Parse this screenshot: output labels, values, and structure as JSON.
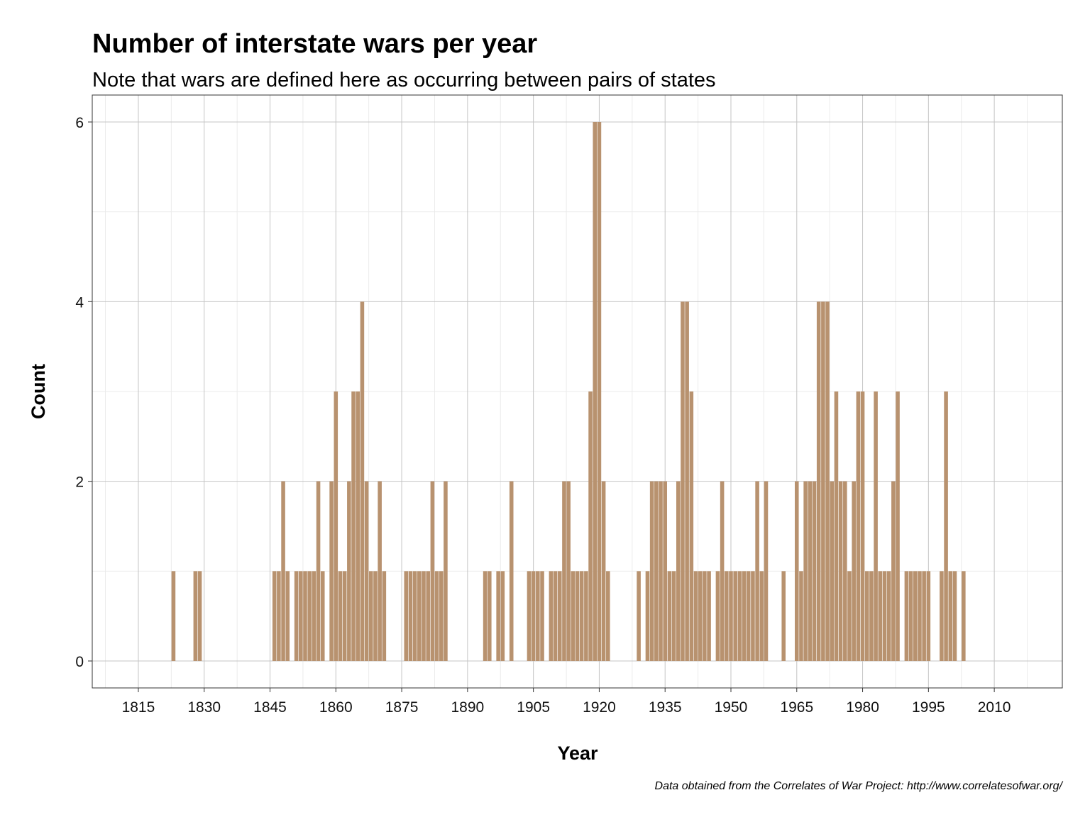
{
  "chart_data": {
    "type": "bar",
    "title": "Number of interstate wars per year",
    "subtitle": "Note that wars are defined here as occurring between pairs of states",
    "caption": "Data obtained from the Correlates of War Project: http://www.correlatesofwar.org/",
    "xlabel": "Year",
    "ylabel": "Count",
    "xlim": [
      1804.5,
      2025.5
    ],
    "ylim": [
      -0.3,
      6.3
    ],
    "x_ticks": [
      1815,
      1830,
      1845,
      1860,
      1875,
      1890,
      1905,
      1920,
      1935,
      1950,
      1965,
      1980,
      1995,
      2010
    ],
    "y_ticks": [
      0,
      2,
      4,
      6
    ],
    "grid": true,
    "bar_color": "#b8926f",
    "x": [
      1823,
      1828,
      1829,
      1846,
      1847,
      1848,
      1849,
      1851,
      1852,
      1853,
      1854,
      1855,
      1856,
      1857,
      1859,
      1860,
      1861,
      1862,
      1863,
      1864,
      1865,
      1866,
      1867,
      1868,
      1869,
      1870,
      1871,
      1876,
      1877,
      1878,
      1879,
      1880,
      1881,
      1882,
      1883,
      1884,
      1885,
      1894,
      1895,
      1897,
      1898,
      1900,
      1904,
      1905,
      1906,
      1907,
      1909,
      1910,
      1911,
      1912,
      1913,
      1914,
      1915,
      1916,
      1917,
      1918,
      1919,
      1920,
      1921,
      1922,
      1929,
      1931,
      1932,
      1933,
      1934,
      1935,
      1936,
      1937,
      1938,
      1939,
      1940,
      1941,
      1942,
      1943,
      1944,
      1945,
      1947,
      1948,
      1949,
      1950,
      1951,
      1952,
      1953,
      1954,
      1955,
      1956,
      1957,
      1958,
      1962,
      1965,
      1966,
      1967,
      1968,
      1969,
      1970,
      1971,
      1972,
      1973,
      1974,
      1975,
      1976,
      1977,
      1978,
      1979,
      1980,
      1981,
      1982,
      1983,
      1984,
      1985,
      1986,
      1987,
      1988,
      1990,
      1991,
      1992,
      1993,
      1994,
      1995,
      1998,
      1999,
      2000,
      2001,
      2003
    ],
    "values": [
      1,
      1,
      1,
      1,
      1,
      2,
      1,
      1,
      1,
      1,
      1,
      1,
      2,
      1,
      2,
      3,
      1,
      1,
      2,
      3,
      3,
      4,
      2,
      1,
      1,
      2,
      1,
      1,
      1,
      1,
      1,
      1,
      1,
      2,
      1,
      1,
      2,
      1,
      1,
      1,
      1,
      2,
      1,
      1,
      1,
      1,
      1,
      1,
      1,
      2,
      2,
      1,
      1,
      1,
      1,
      3,
      6,
      6,
      2,
      1,
      1,
      1,
      2,
      2,
      2,
      2,
      1,
      1,
      2,
      4,
      4,
      3,
      1,
      1,
      1,
      1,
      1,
      2,
      1,
      1,
      1,
      1,
      1,
      1,
      1,
      2,
      1,
      2,
      1,
      2,
      1,
      2,
      2,
      2,
      4,
      4,
      4,
      2,
      3,
      2,
      2,
      1,
      2,
      3,
      3,
      1,
      1,
      3,
      1,
      1,
      1,
      2,
      3,
      1,
      1,
      1,
      1,
      1,
      1,
      1,
      3,
      1,
      1,
      1
    ]
  }
}
